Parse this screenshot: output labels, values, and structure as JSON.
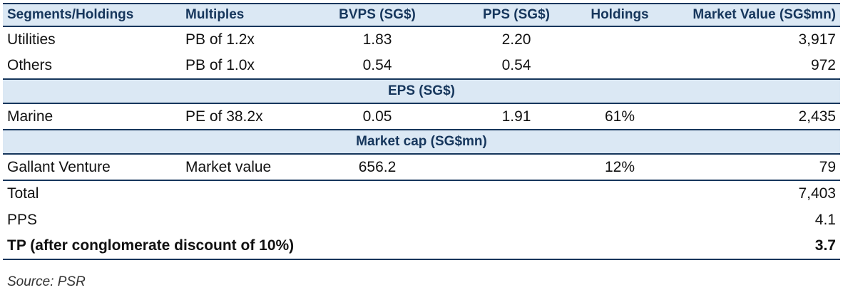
{
  "table": {
    "headers": [
      "Segments/Holdings",
      "Multiples",
      "BVPS (SG$)",
      "PPS (SG$)",
      "Holdings",
      "Market Value (SG$mn)"
    ],
    "rows_bv": [
      [
        "Utilities",
        "PB of 1.2x",
        "1.83",
        "2.20",
        "",
        "3,917"
      ],
      [
        "Others",
        "PB of 1.0x",
        "0.54",
        "0.54",
        "",
        "972"
      ]
    ],
    "eps_label": "EPS (SG$)",
    "rows_eps": [
      [
        "Marine",
        "PE of 38.2x",
        "0.05",
        "1.91",
        "61%",
        "2,435"
      ]
    ],
    "mcap_label": "Market cap (SG$mn)",
    "rows_mcap": [
      [
        "Gallant Venture",
        "Market value",
        "656.2",
        "",
        "12%",
        "79"
      ]
    ],
    "total_label": "Total",
    "total_value": "7,403",
    "pps_label": "PPS",
    "pps_value": "4.1",
    "tp_label": "TP (after conglomerate discount of 10%)",
    "tp_value": "3.7"
  },
  "source": "Source: PSR",
  "colors": {
    "header_bg": "#dbe8f4",
    "header_text": "#16365c",
    "rule": "#16365c"
  }
}
